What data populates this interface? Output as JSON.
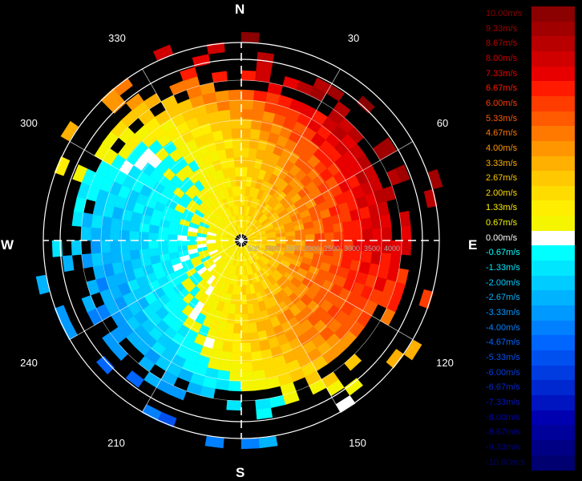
{
  "compass": {
    "north": "N",
    "south": "S",
    "east": "E",
    "west": "W"
  },
  "chart_data": {
    "type": "heatmap",
    "title": "",
    "projection": "polar",
    "bearing_labels": [
      "30",
      "60",
      "120",
      "150",
      "210",
      "240",
      "300",
      "330"
    ],
    "range_rings": [
      "500",
      "1000",
      "1500",
      "2000",
      "2500",
      "3000",
      "3500",
      "4000"
    ],
    "legend": {
      "position": "right",
      "entries": [
        {
          "label": "10.00m/s",
          "color": "#8b0000"
        },
        {
          "label": "9.33m/s",
          "color": "#a10000"
        },
        {
          "label": "8.67m/s",
          "color": "#b80000"
        },
        {
          "label": "8.00m/s",
          "color": "#d00000"
        },
        {
          "label": "7.33m/s",
          "color": "#e80000"
        },
        {
          "label": "6.67m/s",
          "color": "#ff1a00"
        },
        {
          "label": "6.00m/s",
          "color": "#ff3c00"
        },
        {
          "label": "5.33m/s",
          "color": "#ff5a00"
        },
        {
          "label": "4.67m/s",
          "color": "#ff7800"
        },
        {
          "label": "4.00m/s",
          "color": "#ff9600"
        },
        {
          "label": "3.33m/s",
          "color": "#ffb000"
        },
        {
          "label": "2.67m/s",
          "color": "#ffc800"
        },
        {
          "label": "2.00m/s",
          "color": "#ffdc00"
        },
        {
          "label": "1.33m/s",
          "color": "#ffee00"
        },
        {
          "label": "0.67m/s",
          "color": "#f5f500"
        },
        {
          "label": "0.00m/s",
          "color": "#ffffff"
        },
        {
          "label": "-0.67m/s",
          "color": "#00ffff"
        },
        {
          "label": "-1.33m/s",
          "color": "#00e6ff"
        },
        {
          "label": "-2.00m/s",
          "color": "#00ccff"
        },
        {
          "label": "-2.67m/s",
          "color": "#00b3ff"
        },
        {
          "label": "-3.33m/s",
          "color": "#0099ff"
        },
        {
          "label": "-4.00m/s",
          "color": "#0080ff"
        },
        {
          "label": "-4.67m/s",
          "color": "#0066ff"
        },
        {
          "label": "-5.33m/s",
          "color": "#0050f0"
        },
        {
          "label": "-6.00m/s",
          "color": "#003ce0"
        },
        {
          "label": "-6.67m/s",
          "color": "#0028d0"
        },
        {
          "label": "-7.33m/s",
          "color": "#0014c0"
        },
        {
          "label": "-8.00m/s",
          "color": "#0000b0"
        },
        {
          "label": "-8.67m/s",
          "color": "#00009a"
        },
        {
          "label": "-9.33m/s",
          "color": "#000085"
        },
        {
          "label": "-10.00m/s",
          "color": "#000070"
        }
      ]
    },
    "flow_direction_deg": 70,
    "max_range_m": 4000,
    "grid": true
  }
}
